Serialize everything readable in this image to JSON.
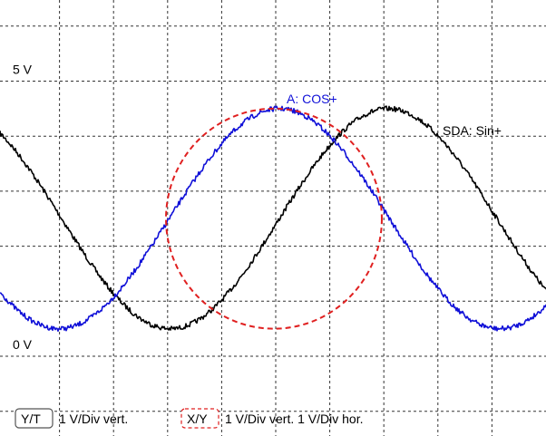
{
  "chart_data": {
    "type": "line",
    "level_labels": [
      {
        "text": "5 V",
        "value": 5
      },
      {
        "text": "0 V",
        "value": 0
      }
    ],
    "series": [
      {
        "name": "SDA: Sin+",
        "color": "#000000",
        "center_volts": 2.5,
        "amplitude_volts": 2.0,
        "phase_deg": 180,
        "x": [
          0,
          0.5,
          1,
          1.5,
          2,
          2.5,
          3,
          3.5,
          4,
          4.5,
          5,
          5.5,
          6,
          6.5,
          7,
          7.5,
          8,
          8.5,
          9,
          9.5,
          10
        ],
        "y": [
          3.07,
          2.37,
          1.67,
          1.06,
          0.63,
          0.51,
          0.67,
          1.14,
          1.82,
          2.53,
          3.23,
          3.88,
          4.35,
          4.51,
          4.31,
          3.73,
          2.91,
          2.14,
          1.45,
          0.91,
          0.61
        ]
      },
      {
        "name": "A: COS+",
        "color": "#1010d8",
        "center_volts": 2.5,
        "amplitude_volts": 2.0,
        "phase_deg": -90,
        "x": [
          0,
          0.5,
          1,
          1.5,
          2,
          2.5,
          3,
          3.5,
          4,
          4.5,
          5,
          5.5,
          6,
          6.5,
          7,
          7.5,
          8,
          8.5,
          9,
          9.5,
          10
        ],
        "y": [
          0.99,
          0.54,
          0.56,
          0.92,
          1.53,
          2.27,
          2.98,
          3.62,
          4.17,
          4.52,
          4.44,
          3.98,
          3.28,
          2.51,
          1.78,
          1.14,
          0.66,
          0.51,
          0.56,
          0.89,
          1.34
        ]
      },
      {
        "name": "X/Y",
        "color": "#e02020",
        "style": "dashed",
        "shape": "circle",
        "center_volts": [
          0,
          2.5
        ],
        "radius_volts": 2.0
      }
    ],
    "modes": [
      {
        "box": "Y/T",
        "text": "1 V/Div vert.",
        "color": "#555555"
      },
      {
        "box": "X/Y",
        "text": "1 V/Div vert.  1 V/Div hor.",
        "color": "#e02020"
      }
    ],
    "grid": true,
    "x_divisions": 10,
    "y_divisions": 8,
    "vertical_scale": "1 V/Div",
    "horizontal_scale": "1 V/Div"
  }
}
